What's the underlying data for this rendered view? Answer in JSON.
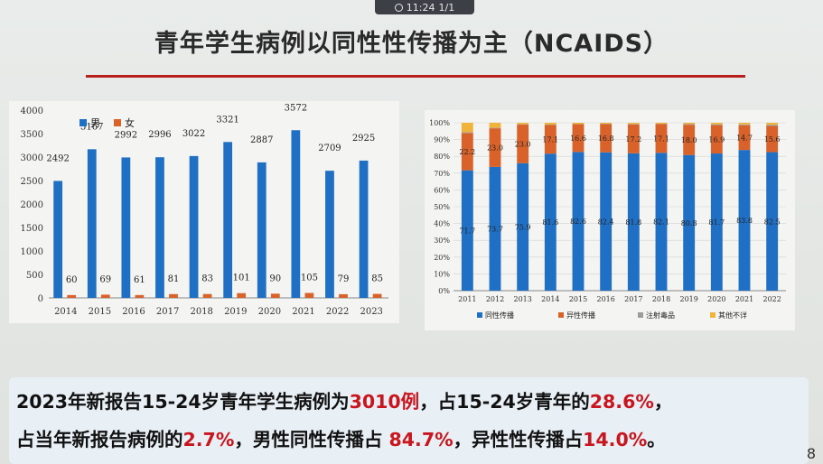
{
  "status": {
    "time": "11:24",
    "page": "1/1"
  },
  "title": "青年学生病例以同性性传播为主（NCAIDS）",
  "chart_data": [
    {
      "type": "bar",
      "categories": [
        "2014",
        "2015",
        "2016",
        "2017",
        "2018",
        "2019",
        "2020",
        "2021",
        "2022",
        "2023"
      ],
      "series": [
        {
          "name": "男",
          "values": [
            2492,
            3167,
            2992,
            2996,
            3022,
            3321,
            2887,
            3572,
            2709,
            2925
          ],
          "color": "#1f6fc4"
        },
        {
          "name": "女",
          "values": [
            60,
            69,
            61,
            81,
            83,
            101,
            90,
            105,
            79,
            85
          ],
          "color": "#d9622b"
        }
      ],
      "ylim": [
        0,
        4000
      ],
      "yticks": [
        "0",
        "500",
        "1000",
        "1500",
        "2000",
        "2500",
        "3000",
        "3500",
        "4000"
      ],
      "legend": "top-left"
    },
    {
      "type": "bar",
      "stacked": true,
      "categories": [
        "2011",
        "2012",
        "2013",
        "2014",
        "2015",
        "2016",
        "2017",
        "2018",
        "2019",
        "2020",
        "2021",
        "2022"
      ],
      "series": [
        {
          "name": "同性传播",
          "values": [
            71.7,
            73.7,
            75.9,
            81.6,
            82.6,
            82.4,
            81.8,
            82.1,
            80.8,
            81.7,
            83.8,
            82.5
          ],
          "labels": [
            "71.7",
            "73.7",
            "75.9",
            "81.6",
            "82.6",
            "82.4",
            "81.8",
            "82.1",
            "80.8",
            "81.7",
            "83.8",
            "82.5"
          ],
          "color": "#1f6fc4"
        },
        {
          "name": "异性传播",
          "values": [
            22.2,
            23.0,
            23.0,
            17.1,
            16.6,
            16.8,
            17.2,
            17.1,
            18.0,
            16.9,
            14.7,
            15.6
          ],
          "labels": [
            "22.2",
            "23.0",
            "23.0",
            "17.1",
            "16.6",
            "16.8",
            "17.2",
            "17.1",
            "18.0",
            "16.9",
            "14.7",
            "15.6"
          ],
          "color": "#d9622b"
        },
        {
          "name": "注射毒品",
          "values": [
            0.5,
            0.3,
            0.2,
            0.2,
            0.1,
            0.2,
            0.3,
            0.2,
            0.4,
            0.5,
            0.5,
            0.7
          ],
          "color": "#9c9c9c"
        },
        {
          "name": "其他不详",
          "values": [
            5.6,
            3.0,
            0.9,
            1.1,
            0.7,
            0.6,
            0.7,
            0.6,
            0.8,
            0.9,
            1.0,
            1.2
          ],
          "color": "#f0b43a"
        }
      ],
      "ylim": [
        0,
        100
      ],
      "yticks": [
        "0%",
        "10%",
        "20%",
        "30%",
        "40%",
        "50%",
        "60%",
        "70%",
        "80%",
        "90%",
        "100%"
      ],
      "legend": "bottom"
    }
  ],
  "summary": {
    "l1a": "2023年新报告15-24岁青年学生病例为",
    "l1b": "3010例",
    "l1c": "，占15-24岁青年的",
    "l1d": "28.6%",
    "l1e": "，",
    "l2a": "占当年新报告病例的",
    "l2b": "2.7%",
    "l2c": "，男性同性传播占 ",
    "l2d": "84.7%",
    "l2e": "，异性性传播占",
    "l2f": "14.0%",
    "l2g": "。"
  },
  "page_number": "8"
}
